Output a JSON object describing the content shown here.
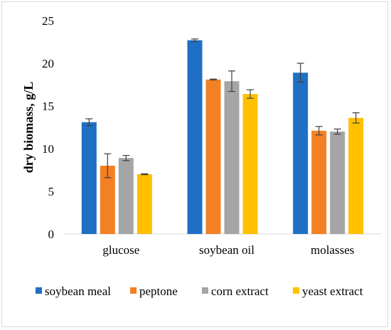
{
  "chart_data": {
    "type": "bar",
    "title": "",
    "xlabel": "",
    "ylabel": "dry biomass, g/L",
    "ylim": [
      0,
      25
    ],
    "yticks": [
      0,
      5,
      10,
      15,
      20,
      25
    ],
    "categories": [
      "glucose",
      "soybean oil",
      "molasses"
    ],
    "grid": false,
    "legend_position": "bottom",
    "series": [
      {
        "name": "soybean meal",
        "color": "#1f6fc5",
        "values": [
          13.1,
          22.7,
          18.9
        ],
        "errors": [
          0.4,
          0.15,
          1.1
        ]
      },
      {
        "name": "peptone",
        "color": "#f48024",
        "values": [
          8.0,
          18.1,
          12.1
        ],
        "errors": [
          1.4,
          0.05,
          0.5
        ]
      },
      {
        "name": "corn extract",
        "color": "#a5a5a5",
        "values": [
          8.9,
          17.9,
          12.0
        ],
        "errors": [
          0.3,
          1.2,
          0.3
        ]
      },
      {
        "name": "yeast extract",
        "color": "#ffc000",
        "values": [
          7.0,
          16.4,
          13.6
        ],
        "errors": [
          0.05,
          0.5,
          0.6
        ]
      }
    ]
  }
}
